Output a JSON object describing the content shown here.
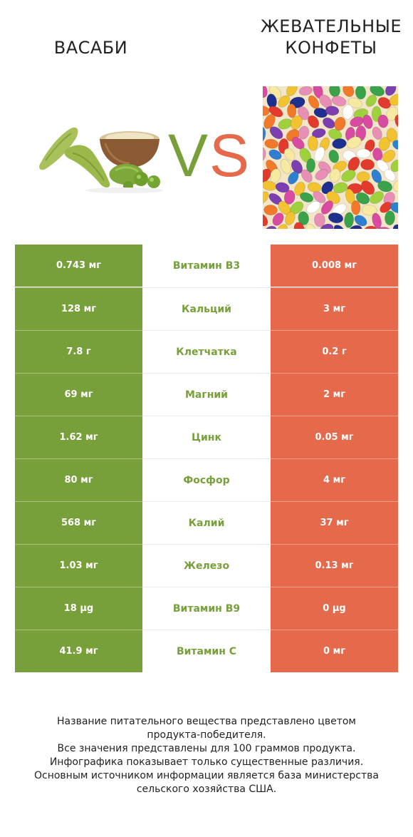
{
  "food_left": {
    "name": "ВАСАБИ",
    "color": "#78a03a"
  },
  "food_right": {
    "name_lines": [
      "ЖЕВАТЕЛЬНЫЕ",
      "КОНФЕТЫ"
    ],
    "color": "#e5694b"
  },
  "vs": {
    "v": "V",
    "s": "S"
  },
  "rows": [
    {
      "left": "0.743 мг",
      "nutrient": "Витамин B3",
      "right": "0.008 мг"
    },
    {
      "left": "128 мг",
      "nutrient": "Кальций",
      "right": "3 мг"
    },
    {
      "left": "7.8 г",
      "nutrient": "Клетчатка",
      "right": "0.2 г"
    },
    {
      "left": "69 мг",
      "nutrient": "Магний",
      "right": "2 мг"
    },
    {
      "left": "1.62 мг",
      "nutrient": "Цинк",
      "right": "0.05 мг"
    },
    {
      "left": "80 мг",
      "nutrient": "Фосфор",
      "right": "4 мг"
    },
    {
      "left": "568 мг",
      "nutrient": "Калий",
      "right": "37 мг"
    },
    {
      "left": "1.03 мг",
      "nutrient": "Железо",
      "right": "0.13 мг"
    },
    {
      "left": "18 µg",
      "nutrient": "Витамин B9",
      "right": "0 µg"
    },
    {
      "left": "41.9 мг",
      "nutrient": "Витамин C",
      "right": "0 мг"
    }
  ],
  "footnote": {
    "line1": "Название питательного вещества представлено цветом",
    "line2": "продукта-победителя.",
    "line3": "Все значения представлены для 100 граммов продукта.",
    "line4": "Инфографика показывает только существенные различия.",
    "line5": "Основным источником информации является база министерства",
    "line6": "сельского хозяйства США."
  }
}
